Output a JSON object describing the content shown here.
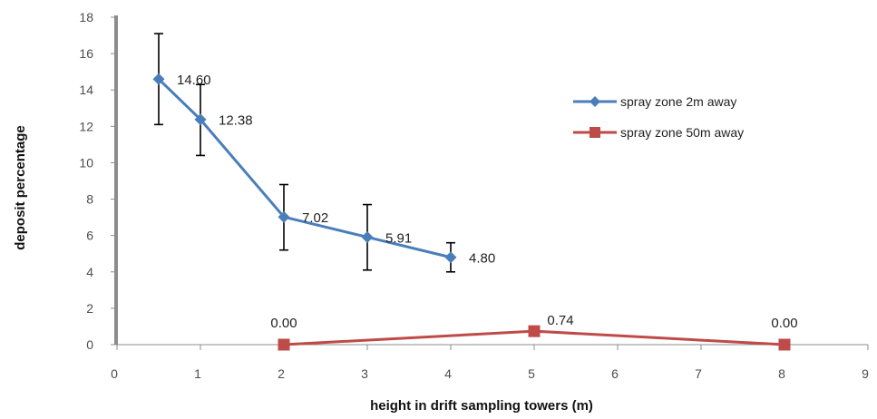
{
  "chart_data": {
    "type": "line",
    "xlabel": "height  in drift sampling towers (m)",
    "ylabel": "deposit percentage",
    "xlim": [
      0,
      9
    ],
    "ylim": [
      0,
      18
    ],
    "xticks": [
      0,
      1,
      2,
      3,
      4,
      5,
      6,
      7,
      8,
      9
    ],
    "yticks": [
      0,
      2,
      4,
      6,
      8,
      10,
      12,
      14,
      16,
      18
    ],
    "grid": false,
    "legend_position": "right",
    "series": [
      {
        "name": "spray zone 2m away",
        "color": "#4a7ebb",
        "marker": "diamond",
        "points": [
          {
            "x": 0.5,
            "y": 14.6,
            "label": "14.60",
            "err_low": 12.1,
            "err_high": 17.1
          },
          {
            "x": 1,
            "y": 12.38,
            "label": "12.38",
            "err_low": 10.4,
            "err_high": 14.3
          },
          {
            "x": 2,
            "y": 7.02,
            "label": "7.02",
            "err_low": 5.2,
            "err_high": 8.8
          },
          {
            "x": 3,
            "y": 5.91,
            "label": "5.91",
            "err_low": 4.1,
            "err_high": 7.7
          },
          {
            "x": 4,
            "y": 4.8,
            "label": "4.80",
            "err_low": 4.0,
            "err_high": 5.6
          }
        ]
      },
      {
        "name": "spray zone 50m away",
        "color": "#be4b48",
        "marker": "square",
        "points": [
          {
            "x": 2,
            "y": 0.0,
            "label": "0.00"
          },
          {
            "x": 5,
            "y": 0.74,
            "label": "0.74"
          },
          {
            "x": 8,
            "y": 0.0,
            "label": "0.00"
          }
        ]
      }
    ]
  }
}
